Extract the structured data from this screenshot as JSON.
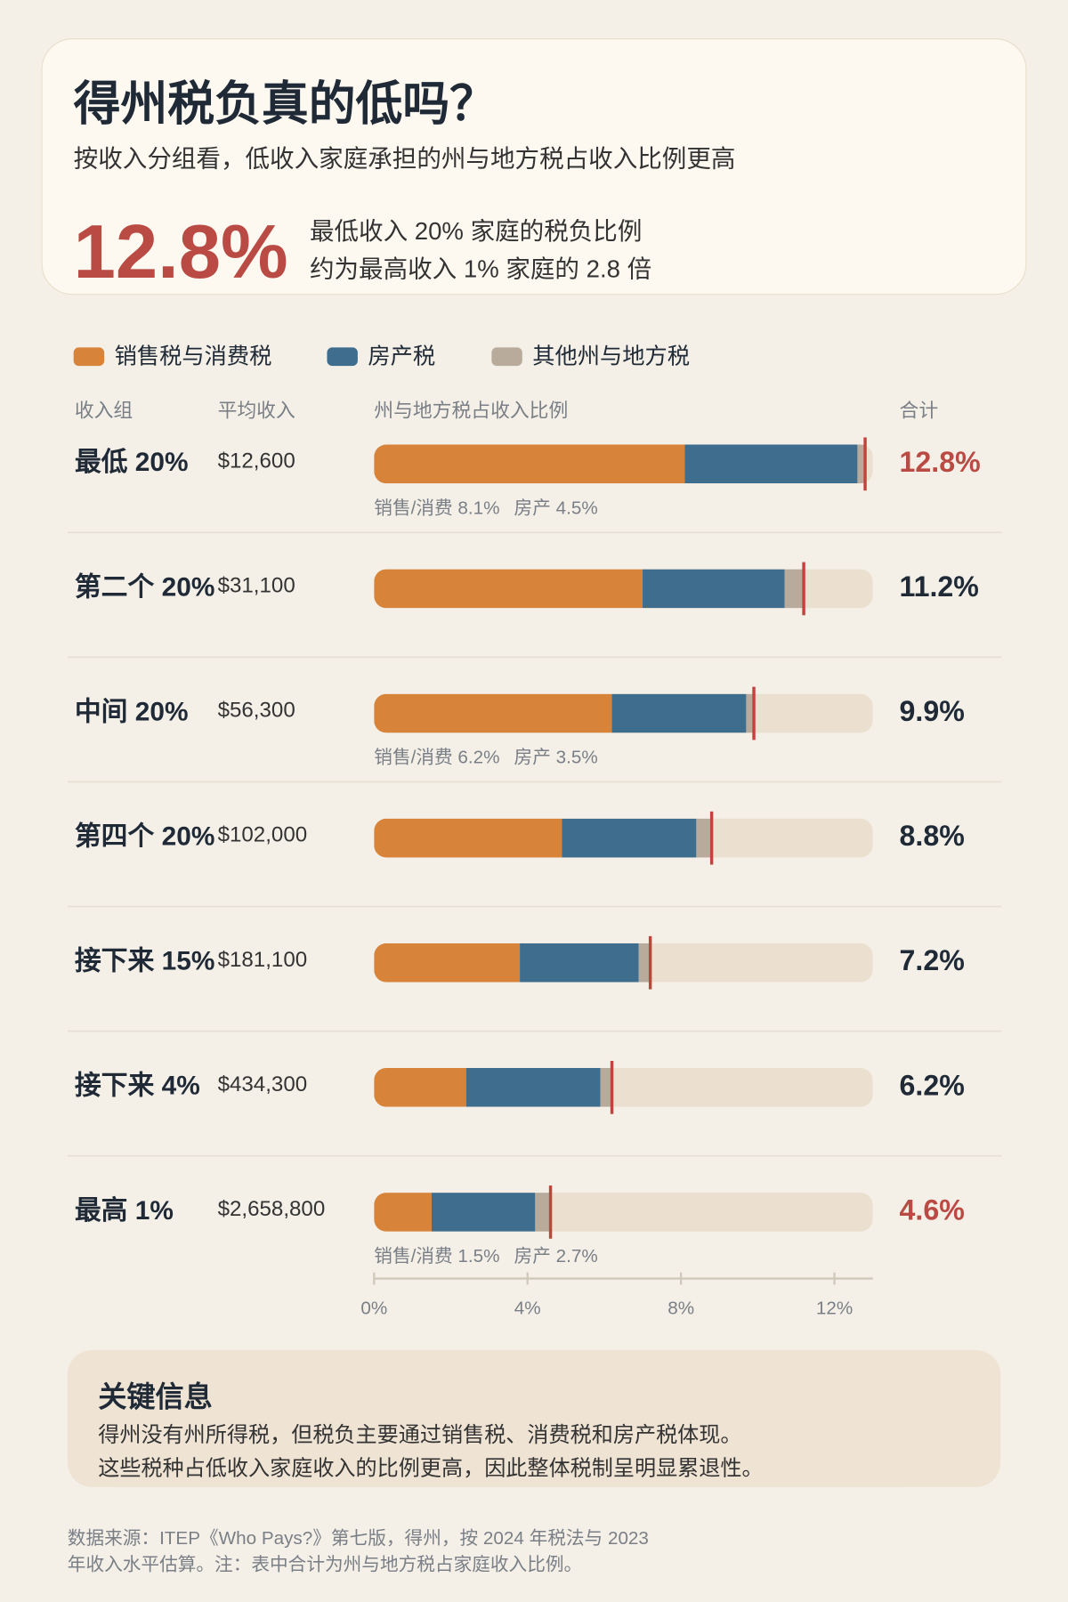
{
  "header": {
    "title": "得州税负真的低吗？",
    "subtitle": "按收入分组看，低收入家庭承担的州与地方税占收入比例更高"
  },
  "highlight": {
    "lines": [
      "最低收入 20% 家庭的税负比例",
      "约为最高收入 1% 家庭的 2.8 倍"
    ]
  },
  "chart_data": {
    "type": "bar",
    "orientation": "horizontal",
    "stacked": true,
    "columns": [
      "收入组",
      "平均收入",
      "州与地方税占收入比例",
      "合计"
    ],
    "categories": [
      "最低 20%",
      "第二个 20%",
      "中间 20%",
      "第四个 20%",
      "接下来 15%",
      "接下来 4%",
      "最高 1%"
    ],
    "incomes": [
      "$12,600",
      "$31,100",
      "$56,300",
      "$102,000",
      "$181,100",
      "$434,300",
      "$2,658,800"
    ],
    "series": [
      {
        "name": "销售税与消费税",
        "color": "#d8833a",
        "values": [
          8.1,
          7.0,
          6.2,
          4.9,
          3.8,
          2.4,
          1.5
        ],
        "value_labels": [
          "销售/消费 8.1%",
          null,
          "销售/消费 6.2%",
          null,
          null,
          null,
          "销售/消费 1.5%"
        ]
      },
      {
        "name": "房产税",
        "color": "#3e6d8e",
        "values": [
          4.5,
          3.7,
          3.5,
          3.5,
          3.1,
          3.5,
          2.7
        ],
        "value_labels": [
          "房产 4.5%",
          null,
          "房产 3.5%",
          null,
          null,
          null,
          "房产 2.7%"
        ]
      },
      {
        "name": "其他州与地方税",
        "color": "#b8ab9c",
        "values": [
          0.2,
          0.5,
          0.2,
          0.4,
          0.3,
          0.3,
          0.4
        ]
      }
    ],
    "totals": [
      12.8,
      11.2,
      9.9,
      8.8,
      7.2,
      6.2,
      4.6
    ],
    "total_labels": [
      "12.8%",
      "11.2%",
      "9.9%",
      "8.8%",
      "7.2%",
      "6.2%",
      "4.6%"
    ],
    "total_colors": [
      "#b94a44",
      "#1f2a36",
      "#1f2a36",
      "#1f2a36",
      "#1f2a36",
      "#1f2a36",
      "#b94a44"
    ],
    "marker_color": "#c0433c",
    "track_color": "#ebe0d0",
    "xlim": [
      0,
      13
    ],
    "xticks": [
      {
        "value": 0,
        "label": "0%"
      },
      {
        "value": 4,
        "label": "4%"
      },
      {
        "value": 8,
        "label": "8%"
      },
      {
        "value": 12,
        "label": "12%"
      }
    ]
  },
  "key_info": {
    "title": "关键信息",
    "lines": [
      "得州没有州所得税，但税负主要通过销售税、消费税和房产税体现。",
      "这些税种占低收入家庭收入的比例更高，因此整体税制呈明显累退性。"
    ]
  },
  "source": {
    "lines": [
      "数据来源：ITEP《Who Pays?》第七版，得州，按 2024 年税法与 2023",
      "年收入水平估算。注：表中合计为州与地方税占家庭收入比例。"
    ]
  }
}
